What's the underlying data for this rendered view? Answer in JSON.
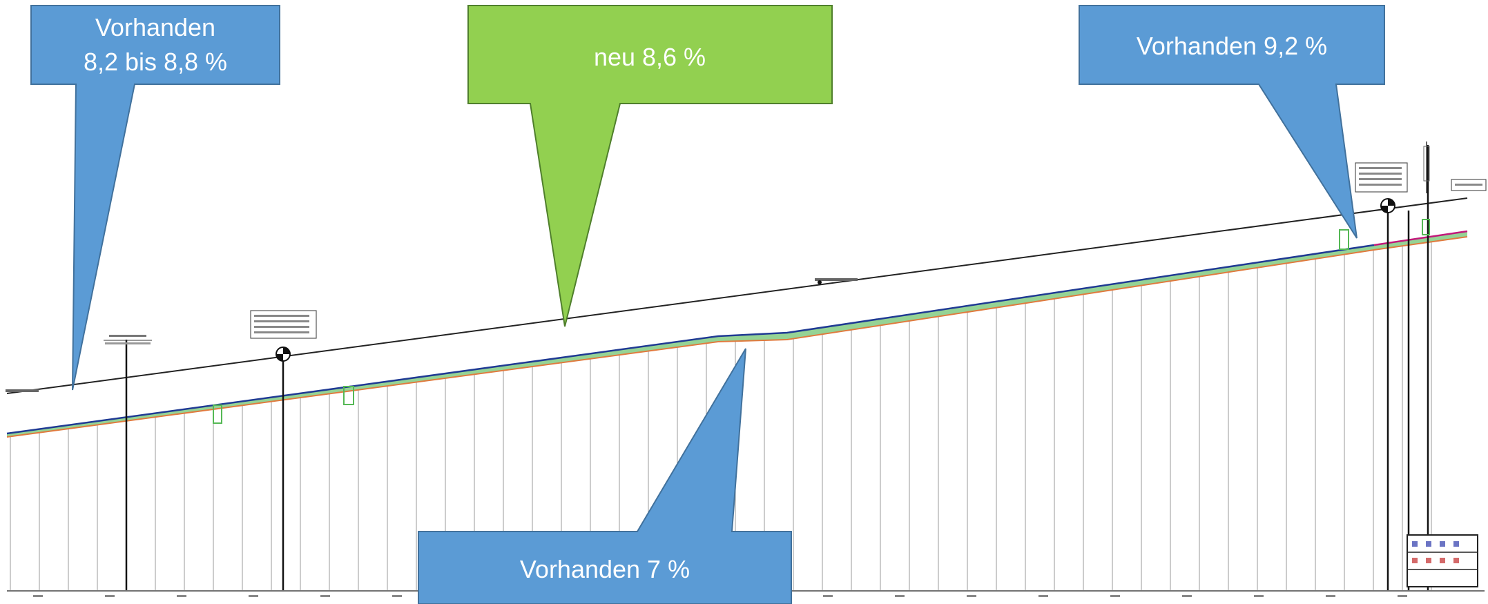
{
  "callouts": {
    "existing_left": {
      "line1": "Vorhanden",
      "line2": "8,2 bis 8,8 %",
      "color": "#5b9bd5"
    },
    "new_middle": {
      "line1": "neu 8,6 %",
      "color": "#92d050"
    },
    "existing_right": {
      "line1": "Vorhanden 9,2 %",
      "color": "#5b9bd5"
    },
    "existing_bottom": {
      "line1": "Vorhanden 7 %",
      "color": "#5b9bd5"
    }
  },
  "profile": {
    "design_line_color": "#1f3a93",
    "fill_color": "#8fd18f",
    "existing_ground_color": "#e07a3e",
    "reference_line_color": "#222222",
    "end_segment_color": "#c2187a"
  },
  "icons": {
    "vertex_left": "survey-point-icon",
    "vertex_right": "survey-point-icon"
  }
}
